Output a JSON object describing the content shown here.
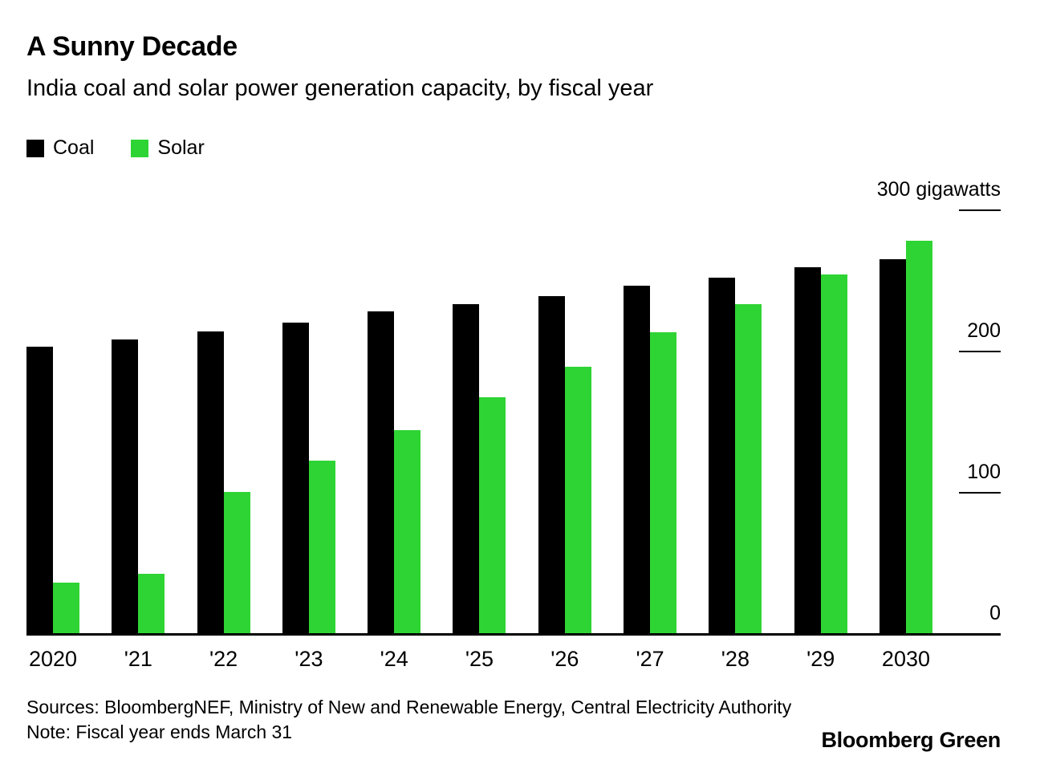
{
  "header": {
    "title": "A Sunny Decade",
    "subtitle": "India coal and solar power generation capacity, by fiscal year"
  },
  "chart_data": {
    "type": "bar",
    "title": "A Sunny Decade",
    "subtitle": "India coal and solar power generation capacity, by fiscal year",
    "unit": "gigawatts",
    "categories": [
      "2020",
      "'21",
      "'22",
      "'23",
      "'24",
      "'25",
      "'26",
      "'27",
      "'28",
      "'29",
      "2030"
    ],
    "series": [
      {
        "name": "Coal",
        "color": "#000000",
        "values": [
          203,
          208,
          214,
          220,
          228,
          233,
          239,
          246,
          252,
          259,
          265
        ]
      },
      {
        "name": "Solar",
        "color": "#2ed433",
        "values": [
          36,
          42,
          100,
          122,
          144,
          167,
          189,
          213,
          233,
          254,
          278
        ]
      }
    ],
    "ylim": [
      0,
      300
    ],
    "yticks": [
      {
        "value": 0,
        "label": "0"
      },
      {
        "value": 100,
        "label": "100"
      },
      {
        "value": 200,
        "label": "200"
      },
      {
        "value": 300,
        "label": "300 gigawatts"
      }
    ],
    "grid": false,
    "legend_position": "top-left",
    "axis_side": "right"
  },
  "footer": {
    "sources": "Sources: BloombergNEF, Ministry of New and Renewable Energy, Central Electricity Authority",
    "note": "Note: Fiscal year ends March 31",
    "brand": "Bloomberg Green"
  }
}
